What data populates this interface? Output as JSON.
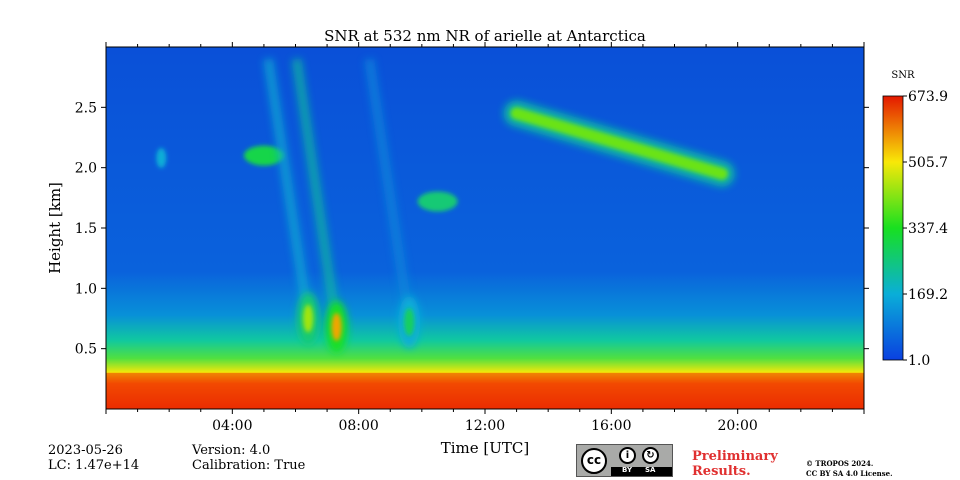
{
  "chart_data": {
    "type": "heatmap",
    "title": "SNR at 532 nm NR of arielle at Antarctica",
    "xlabel": "Time [UTC]",
    "ylabel": "Height [km]",
    "xlim_hours": [
      0,
      24
    ],
    "ylim_km": [
      0,
      3.0
    ],
    "xticks": [
      {
        "hour": 4,
        "label": "04:00"
      },
      {
        "hour": 8,
        "label": "08:00"
      },
      {
        "hour": 12,
        "label": "12:00"
      },
      {
        "hour": 16,
        "label": "16:00"
      },
      {
        "hour": 20,
        "label": "20:00"
      }
    ],
    "yticks": [
      {
        "km": 0.5,
        "label": "0.5"
      },
      {
        "km": 1.0,
        "label": "1.0"
      },
      {
        "km": 1.5,
        "label": "1.5"
      },
      {
        "km": 2.0,
        "label": "2.0"
      },
      {
        "km": 2.5,
        "label": "2.5"
      }
    ],
    "colorbar": {
      "title": "SNR",
      "min": 1.0,
      "max": 673.9,
      "ticks": [
        {
          "value": 1.0,
          "label": "1.0"
        },
        {
          "value": 169.2,
          "label": "169.2"
        },
        {
          "value": 337.4,
          "label": "337.4"
        },
        {
          "value": 505.7,
          "label": "505.7"
        },
        {
          "value": 673.9,
          "label": "673.9"
        }
      ]
    },
    "features": [
      {
        "name": "surface layer",
        "time_range_h": [
          0,
          24
        ],
        "height_range_km": [
          0.0,
          0.3
        ],
        "snr_approx": 650
      },
      {
        "name": "cloud band",
        "time_range_h": [
          13.0,
          19.5
        ],
        "height_km_start": 2.45,
        "height_km_end": 1.95,
        "snr_approx": 400
      },
      {
        "name": "cloud",
        "time_h": 5.0,
        "height_km": 2.1,
        "snr_approx": 300
      },
      {
        "name": "cloud",
        "time_h": 10.5,
        "height_km": 1.72,
        "snr_approx": 260
      },
      {
        "name": "cloud",
        "time_h": 1.75,
        "height_km": 2.08,
        "snr_approx": 170
      },
      {
        "name": "plume",
        "time_h": 6.4,
        "height_km": 0.75,
        "snr_approx": 440
      },
      {
        "name": "plume",
        "time_h": 7.3,
        "height_km": 0.68,
        "snr_approx": 560
      },
      {
        "name": "plume",
        "time_h": 9.6,
        "height_km": 0.72,
        "snr_approx": 280
      }
    ]
  },
  "footer": {
    "date": "2023-05-26",
    "lc": "LC: 1.47e+14",
    "version": "Version: 4.0",
    "calibration": "Calibration: True",
    "preliminary_line1": "Preliminary",
    "preliminary_line2": "Results.",
    "copyright_line1": "© TROPOS 2024.",
    "copyright_line2": "CC BY SA 4.0 License.",
    "license_logo_text": "cc",
    "license_by": "BY",
    "license_sa": "SA"
  }
}
